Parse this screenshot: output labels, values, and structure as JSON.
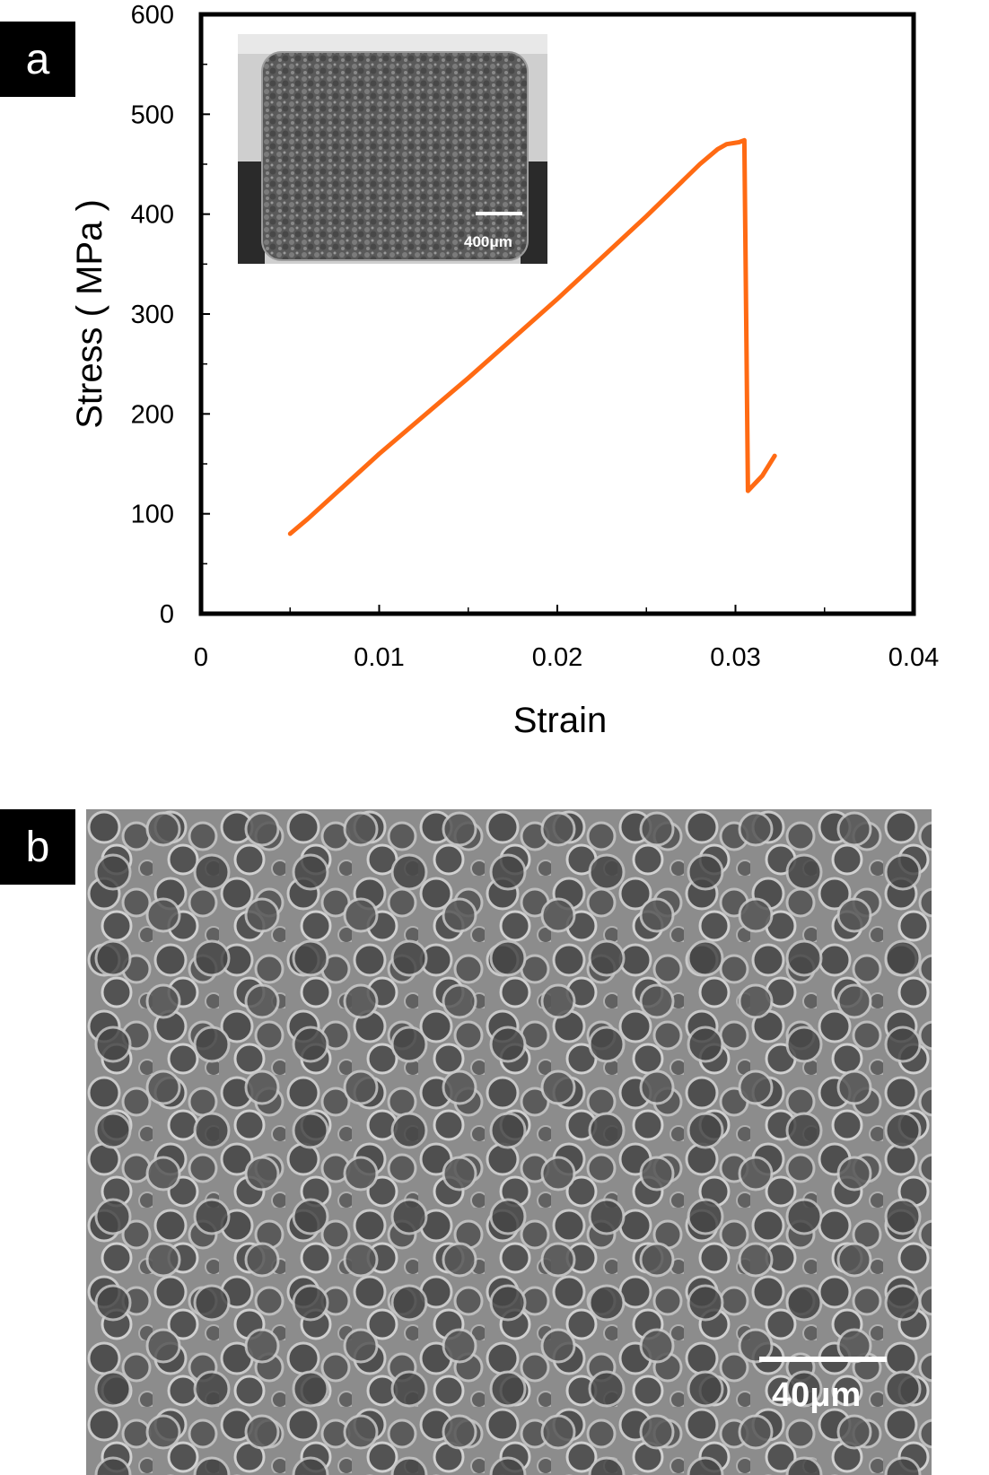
{
  "panels": {
    "a": "a",
    "b": "b"
  },
  "chart_data": {
    "type": "line",
    "xlabel": "Strain",
    "ylabel": "Stress ( MPa )",
    "xlim": [
      0,
      0.04
    ],
    "ylim": [
      0,
      600
    ],
    "x_ticks": [
      0,
      0.01,
      0.02,
      0.03,
      0.04
    ],
    "x_tick_labels": [
      "0",
      "0.01",
      "0.02",
      "0.03",
      "0.04"
    ],
    "y_ticks": [
      0,
      100,
      200,
      300,
      400,
      500,
      600
    ],
    "y_tick_labels": [
      "0",
      "100",
      "200",
      "300",
      "400",
      "500",
      "600"
    ],
    "grid": false,
    "series": [
      {
        "color": "#ff6a13",
        "points": [
          [
            0.005,
            80
          ],
          [
            0.006,
            95
          ],
          [
            0.01,
            160
          ],
          [
            0.015,
            236
          ],
          [
            0.02,
            315
          ],
          [
            0.025,
            398
          ],
          [
            0.028,
            450
          ],
          [
            0.029,
            465
          ],
          [
            0.0295,
            470
          ],
          [
            0.0302,
            472
          ],
          [
            0.0305,
            474
          ],
          [
            0.0306,
            300
          ],
          [
            0.0307,
            123
          ],
          [
            0.0315,
            138
          ],
          [
            0.0322,
            158
          ]
        ]
      }
    ]
  },
  "inset": {
    "scale_label": "400μm"
  },
  "sem": {
    "scale_label": "40μm"
  }
}
